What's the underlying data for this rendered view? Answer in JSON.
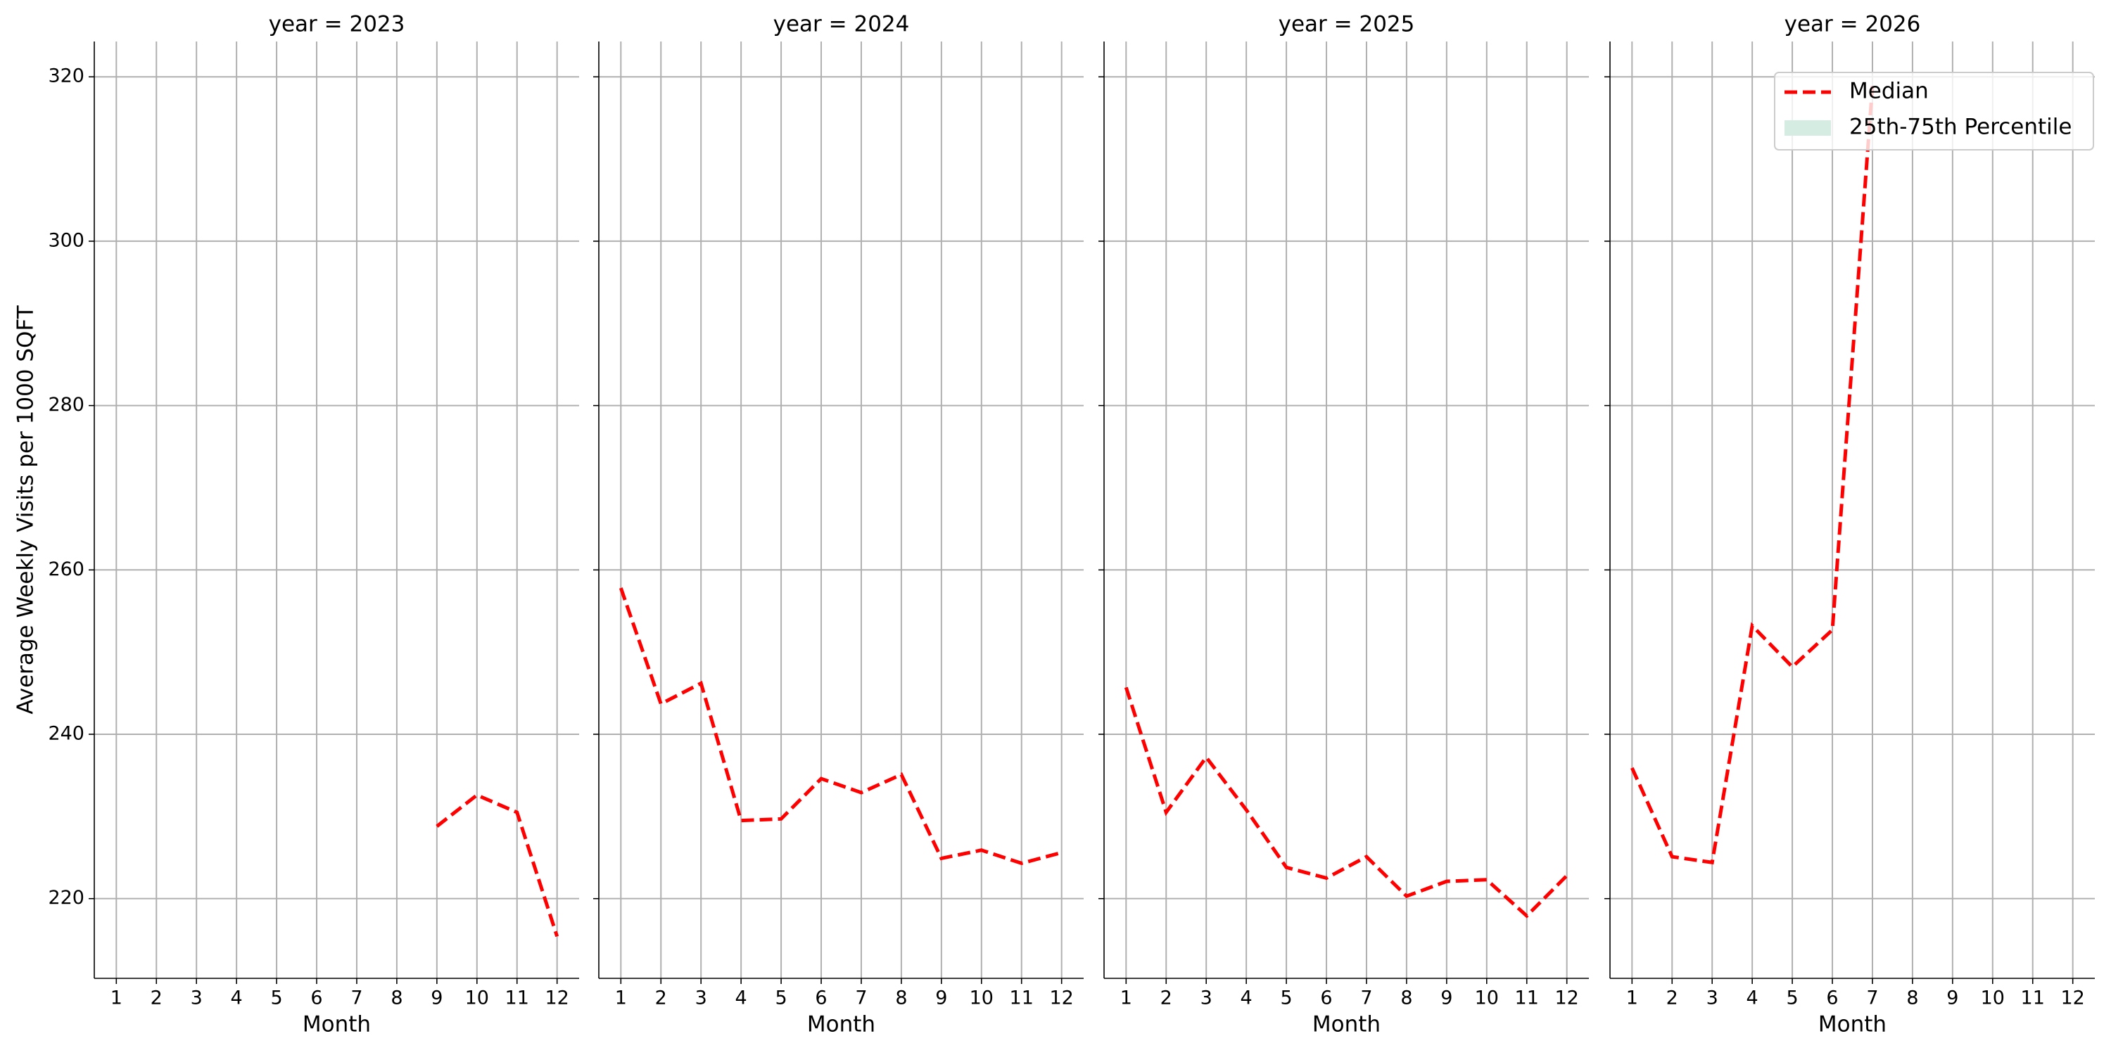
{
  "chart_data": [
    {
      "type": "line",
      "title": "year = 2023",
      "xlabel": "Month",
      "ylabel": "Average Weekly Visits per 1000 SQFT",
      "x": [
        1,
        2,
        3,
        4,
        5,
        6,
        7,
        8,
        9,
        10,
        11,
        12
      ],
      "series": [
        {
          "color": "#ff0000",
          "values": [
            null,
            null,
            null,
            null,
            null,
            null,
            null,
            null,
            228.8,
            232.6,
            230.5,
            215.4
          ]
        }
      ],
      "xlim": [
        0.45,
        12.55
      ],
      "ylim": [
        210.3,
        324.3
      ],
      "xticks": [
        1,
        2,
        3,
        4,
        5,
        6,
        7,
        8,
        9,
        10,
        11,
        12
      ],
      "yticks": [
        220,
        240,
        260,
        280,
        300,
        320
      ],
      "grid": true
    },
    {
      "type": "line",
      "title": "year = 2024",
      "xlabel": "Month",
      "x": [
        1,
        2,
        3,
        4,
        5,
        6,
        7,
        8,
        9,
        10,
        11,
        12
      ],
      "series": [
        {
          "color": "#ff0000",
          "values": [
            257.8,
            243.7,
            246.2,
            229.5,
            229.7,
            234.6,
            232.9,
            235.1,
            224.9,
            225.9,
            224.3,
            225.6
          ]
        }
      ],
      "xlim": [
        0.45,
        12.55
      ],
      "ylim": [
        210.3,
        324.3
      ],
      "xticks": [
        1,
        2,
        3,
        4,
        5,
        6,
        7,
        8,
        9,
        10,
        11,
        12
      ],
      "grid": true
    },
    {
      "type": "line",
      "title": "year = 2025",
      "xlabel": "Month",
      "x": [
        1,
        2,
        3,
        4,
        5,
        6,
        7,
        8,
        9,
        10,
        11,
        12
      ],
      "series": [
        {
          "color": "#ff0000",
          "values": [
            245.7,
            230.5,
            237.2,
            230.8,
            223.8,
            222.5,
            225.1,
            220.3,
            222.1,
            222.3,
            217.9,
            222.8
          ]
        }
      ],
      "xlim": [
        0.45,
        12.55
      ],
      "ylim": [
        210.3,
        324.3
      ],
      "xticks": [
        1,
        2,
        3,
        4,
        5,
        6,
        7,
        8,
        9,
        10,
        11,
        12
      ],
      "grid": true
    },
    {
      "type": "line",
      "title": "year = 2026",
      "xlabel": "Month",
      "x": [
        1,
        2,
        3,
        4,
        5,
        6,
        7,
        8,
        9,
        10,
        11,
        12
      ],
      "series": [
        {
          "name": "Median",
          "color": "#ff0000",
          "values": [
            235.9,
            225.1,
            224.4,
            253.2,
            248.2,
            252.7,
            318.9,
            null,
            null,
            null,
            null,
            null
          ]
        }
      ],
      "band": {
        "name": "25th-75th Percentile",
        "color": "#d5ece3"
      },
      "xlim": [
        0.45,
        12.55
      ],
      "ylim": [
        210.3,
        324.3
      ],
      "xticks": [
        1,
        2,
        3,
        4,
        5,
        6,
        7,
        8,
        9,
        10,
        11,
        12
      ],
      "grid": true,
      "legend": "upper right"
    }
  ]
}
